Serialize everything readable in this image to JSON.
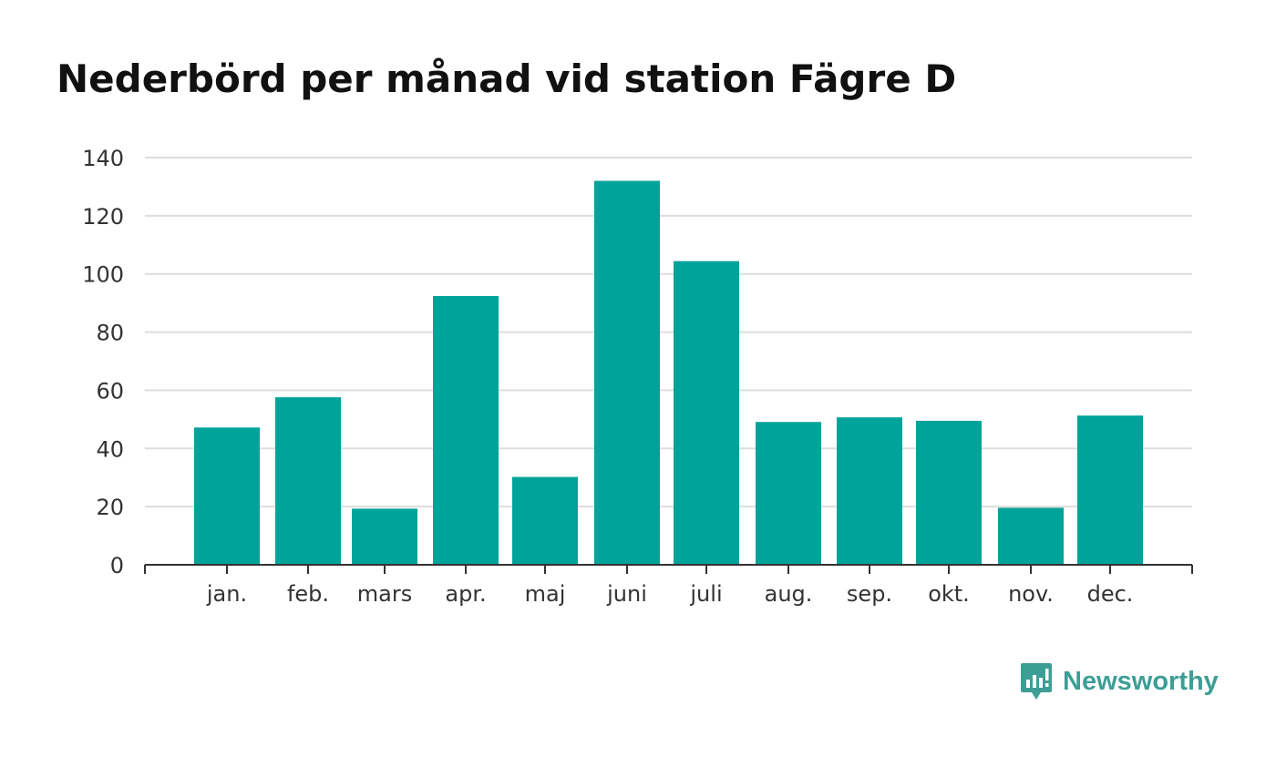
{
  "chart_data": {
    "type": "bar",
    "title": "Nederbörd per månad vid station Fägre D",
    "categories": [
      "jan.",
      "feb.",
      "mars",
      "apr.",
      "maj",
      "juni",
      "juli",
      "aug.",
      "sep.",
      "okt.",
      "nov.",
      "dec."
    ],
    "values": [
      47.2,
      57.6,
      19.3,
      92.4,
      30.2,
      132.0,
      104.4,
      49.1,
      50.7,
      49.5,
      19.6,
      51.3
    ],
    "ylim": [
      0,
      140
    ],
    "yticks": [
      0,
      20,
      40,
      60,
      80,
      100,
      120,
      140
    ],
    "xlabel": "",
    "ylabel": "",
    "grid": true,
    "bar_color": "#00a39a",
    "grid_color": "#dddddd",
    "axis_color": "#333333"
  },
  "brand": {
    "name": "Newsworthy",
    "icon": "newsworthy-logo-icon",
    "color": "#3d9e96"
  }
}
